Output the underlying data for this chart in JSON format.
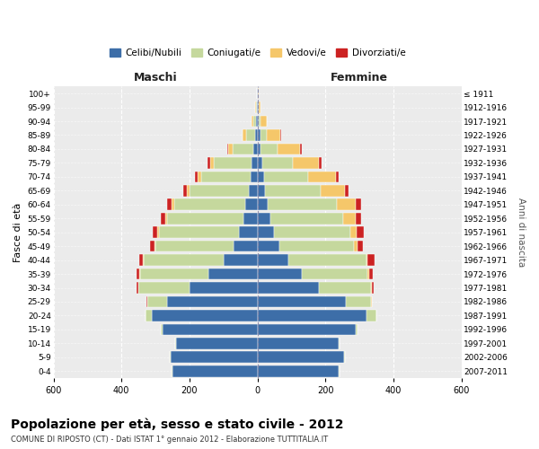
{
  "age_groups": [
    "0-4",
    "5-9",
    "10-14",
    "15-19",
    "20-24",
    "25-29",
    "30-34",
    "35-39",
    "40-44",
    "45-49",
    "50-54",
    "55-59",
    "60-64",
    "65-69",
    "70-74",
    "75-79",
    "80-84",
    "85-89",
    "90-94",
    "95-99",
    "100+"
  ],
  "birth_years": [
    "2007-2011",
    "2002-2006",
    "1997-2001",
    "1992-1996",
    "1987-1991",
    "1982-1986",
    "1977-1981",
    "1972-1976",
    "1967-1971",
    "1962-1966",
    "1957-1961",
    "1952-1956",
    "1947-1951",
    "1942-1946",
    "1937-1941",
    "1932-1936",
    "1927-1931",
    "1922-1926",
    "1917-1921",
    "1912-1916",
    "≤ 1911"
  ],
  "males": {
    "celibi": [
      250,
      255,
      240,
      280,
      310,
      265,
      200,
      145,
      100,
      70,
      55,
      40,
      35,
      25,
      20,
      18,
      12,
      8,
      4,
      2,
      2
    ],
    "coniugati": [
      2,
      2,
      2,
      5,
      20,
      60,
      150,
      200,
      235,
      230,
      235,
      225,
      210,
      175,
      145,
      110,
      60,
      25,
      8,
      2,
      0
    ],
    "vedovi": [
      0,
      0,
      0,
      0,
      0,
      0,
      1,
      2,
      2,
      3,
      5,
      5,
      8,
      8,
      10,
      12,
      15,
      10,
      5,
      2,
      0
    ],
    "divorziati": [
      0,
      0,
      0,
      0,
      0,
      2,
      5,
      10,
      12,
      12,
      12,
      15,
      12,
      10,
      10,
      8,
      2,
      0,
      0,
      0,
      0
    ]
  },
  "females": {
    "nubili": [
      240,
      255,
      240,
      290,
      320,
      260,
      180,
      130,
      90,
      65,
      48,
      38,
      30,
      22,
      20,
      15,
      10,
      8,
      5,
      3,
      2
    ],
    "coniugate": [
      2,
      2,
      2,
      5,
      30,
      75,
      155,
      195,
      230,
      220,
      225,
      215,
      205,
      165,
      130,
      90,
      50,
      20,
      5,
      2,
      0
    ],
    "vedove": [
      0,
      0,
      0,
      0,
      0,
      1,
      2,
      3,
      5,
      10,
      20,
      35,
      55,
      70,
      80,
      75,
      65,
      40,
      18,
      5,
      2
    ],
    "divorziate": [
      0,
      0,
      0,
      0,
      0,
      2,
      5,
      12,
      20,
      15,
      20,
      18,
      15,
      10,
      8,
      8,
      5,
      2,
      0,
      0,
      0
    ]
  },
  "colors": {
    "celibi_nubili": "#3d6ea8",
    "coniugati": "#c5d89d",
    "vedovi": "#f5c76a",
    "divorziati": "#cc2222"
  },
  "xlim": 600,
  "title": "Popolazione per età, sesso e stato civile - 2012",
  "subtitle": "COMUNE DI RIPOSTO (CT) - Dati ISTAT 1° gennaio 2012 - Elaborazione TUTTITALIA.IT",
  "legend_labels": [
    "Celibi/Nubili",
    "Coniugati/e",
    "Vedovi/e",
    "Divorziati/e"
  ],
  "xlabel_left": "Maschi",
  "xlabel_right": "Femmine",
  "ylabel_left": "Fasce di età",
  "ylabel_right": "Anni di nascita",
  "bg_color": "#f8f8f8",
  "plot_bg_color": "#ebebeb"
}
